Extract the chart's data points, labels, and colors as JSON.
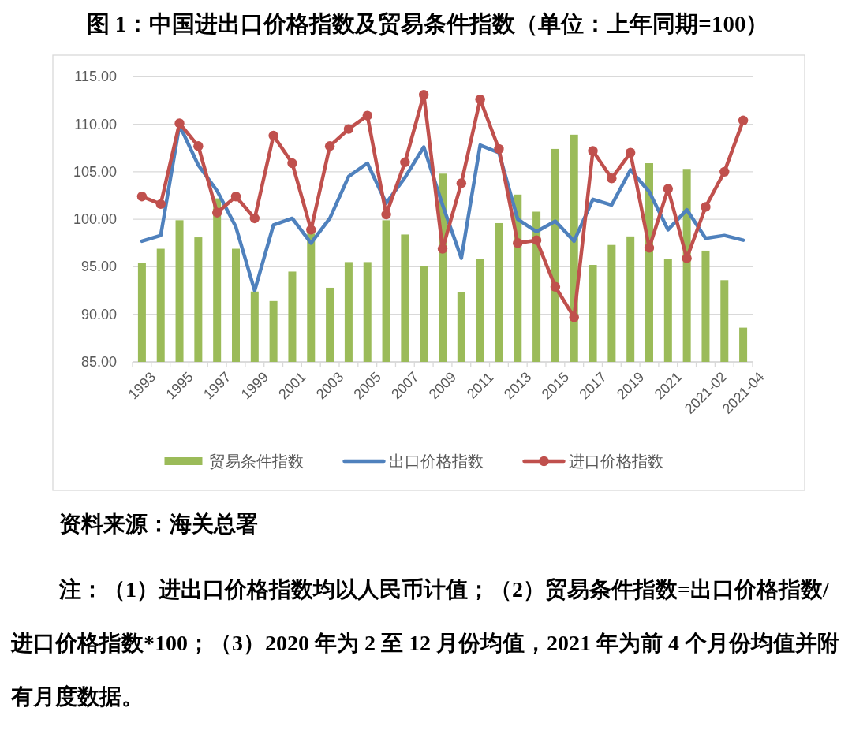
{
  "chart_data": {
    "type": "bar",
    "title": "图 1：中国进出口价格指数及贸易条件指数（单位：上年同期=100）",
    "categories": [
      "1993",
      null,
      "1995",
      null,
      "1997",
      null,
      "1999",
      null,
      "2001",
      null,
      "2003",
      null,
      "2005",
      null,
      "2007",
      null,
      "2009",
      null,
      "2011",
      null,
      "2013",
      null,
      "2015",
      null,
      "2017",
      null,
      "2019",
      null,
      "2021",
      null,
      "2021-02",
      null,
      "2021-04"
    ],
    "series": [
      {
        "name": "贸易条件指数",
        "color": "#9bbb59",
        "values": [
          95.4,
          96.9,
          99.9,
          98.1,
          102.2,
          96.9,
          92.4,
          91.4,
          94.5,
          98.5,
          92.8,
          95.5,
          95.5,
          99.9,
          98.4,
          95.1,
          104.8,
          92.3,
          95.8,
          99.6,
          102.6,
          100.8,
          107.4,
          108.9,
          95.2,
          97.3,
          98.2,
          105.9,
          95.8,
          105.3,
          96.7,
          93.6,
          88.6
        ]
      },
      {
        "name": "出口价格指数",
        "type": "line",
        "color": "#4f81bd",
        "values": [
          97.7,
          98.3,
          109.9,
          105.7,
          103.0,
          99.2,
          92.5,
          99.4,
          100.1,
          97.5,
          100.1,
          104.5,
          105.9,
          101.7,
          104.4,
          107.6,
          101.5,
          95.9,
          107.8,
          107.0,
          100.0,
          98.7,
          99.8,
          97.7,
          102.1,
          101.5,
          105.2,
          102.9,
          98.9,
          101.0,
          98.0,
          98.3,
          97.8
        ]
      },
      {
        "name": "进口价格指数",
        "type": "line",
        "color": "#c0504d",
        "marker": "circle",
        "values": [
          102.4,
          101.6,
          110.1,
          107.7,
          100.7,
          102.4,
          100.1,
          108.8,
          105.9,
          98.9,
          107.7,
          109.5,
          110.9,
          100.5,
          106.0,
          113.1,
          96.9,
          103.8,
          112.6,
          107.4,
          97.5,
          97.8,
          92.9,
          89.7,
          107.2,
          104.3,
          107.0,
          97.0,
          103.2,
          95.9,
          101.3,
          105.0,
          110.4
        ]
      }
    ],
    "ylim": [
      85,
      115
    ],
    "yticks": [
      {
        "value": 85,
        "label": "85.00"
      },
      {
        "value": 90,
        "label": "90.00"
      },
      {
        "value": 95,
        "label": "95.00"
      },
      {
        "value": 100,
        "label": "100.00"
      },
      {
        "value": 105,
        "label": "105.00"
      },
      {
        "value": 110,
        "label": "110.00"
      },
      {
        "value": 115,
        "label": "115.00"
      }
    ],
    "grid": "y",
    "legend": "bottom",
    "line_style": "solid",
    "annotations": [
      "资料来源：海关总署",
      "注：（1）进出口价格指数均以人民币计值；（2）贸易条件指数=出口价格指数/进口价格指数*100；（3）2020 年为 2 至 12 月份均值，2021 年为前 4 个月份均值并附有月度数据。"
    ]
  }
}
